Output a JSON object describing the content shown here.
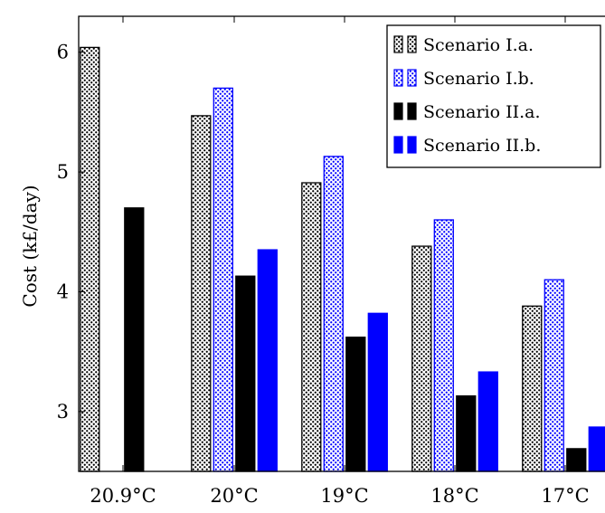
{
  "chart_data": {
    "type": "bar",
    "title": "",
    "xlabel": "",
    "ylabel": "Cost (k£/day)",
    "categories": [
      "20.9°C",
      "20°C",
      "19°C",
      "18°C",
      "17°C"
    ],
    "ylim": [
      2.5,
      6.3
    ],
    "yticks": [
      3,
      4,
      5,
      6
    ],
    "grid": false,
    "legend_position": "top-right",
    "series": [
      {
        "name": "Scenario I.a.",
        "values": [
          6.04,
          5.47,
          4.91,
          4.38,
          3.88
        ],
        "color": "#000000",
        "pattern": "dots-black"
      },
      {
        "name": "Scenario I.b.",
        "values": [
          null,
          5.7,
          5.13,
          4.6,
          4.1
        ],
        "color": "#0000ff",
        "pattern": "dots-blue"
      },
      {
        "name": "Scenario II.a.",
        "values": [
          4.7,
          4.13,
          3.62,
          3.13,
          2.69
        ],
        "color": "#000000",
        "pattern": "solid-black"
      },
      {
        "name": "Scenario II.b.",
        "values": [
          null,
          4.35,
          3.82,
          3.33,
          2.87
        ],
        "color": "#0000ff",
        "pattern": "solid-blue"
      }
    ]
  }
}
